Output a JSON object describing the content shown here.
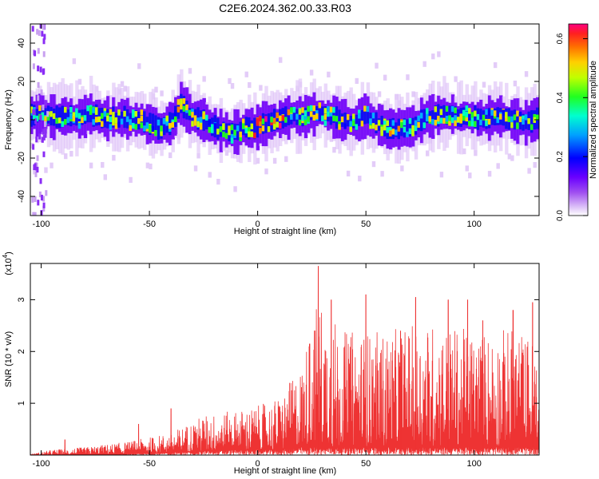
{
  "title": "C2E6.2024.362.00.33.R03",
  "top_panel": {
    "ylabel": "Frequency (Hz)",
    "xlabel": "Height of straight line (km)"
  },
  "colorbar": {
    "label": "Normalized spectral amplitude",
    "ticks": [
      "0.0",
      "0.2",
      "0.4",
      "0.6"
    ]
  },
  "bottom_panel": {
    "ylabel": "SNR (10 * v/v)",
    "multiplier": "(x10",
    "multiplier_exp": "4",
    "xlabel": "Height of straight line (km)"
  },
  "chart_data": [
    {
      "type": "heatmap",
      "title": "C2E6.2024.362.00.33.R03",
      "xlabel": "Height of straight line (km)",
      "ylabel": "Frequency (Hz)",
      "xlim": [
        -105,
        130
      ],
      "ylim": [
        -50,
        50
      ],
      "xticks": [
        -100,
        -50,
        0,
        50,
        100
      ],
      "yticks": [
        -40,
        -20,
        0,
        20,
        40
      ],
      "colorbar_label": "Normalized spectral amplitude",
      "colorbar_range": [
        0.0,
        0.65
      ],
      "colorbar_ticks": [
        0.0,
        0.2,
        0.4,
        0.6
      ],
      "colormap": [
        "#ffffff",
        "#d9b8f5",
        "#9a3ef5",
        "#6a00ff",
        "#0000ff",
        "#00b0ff",
        "#00ffc0",
        "#20ff20",
        "#c8ff00",
        "#ffd000",
        "#ff8000",
        "#ff2020",
        "#ff0090"
      ],
      "band_center_hz": [
        {
          "x": -105,
          "f": 2
        },
        {
          "x": -95,
          "f": 2
        },
        {
          "x": -85,
          "f": 1
        },
        {
          "x": -75,
          "f": 2
        },
        {
          "x": -65,
          "f": 1
        },
        {
          "x": -55,
          "f": 0
        },
        {
          "x": -45,
          "f": -4
        },
        {
          "x": -40,
          "f": -3
        },
        {
          "x": -35,
          "f": 8
        },
        {
          "x": -30,
          "f": 2
        },
        {
          "x": -20,
          "f": -4
        },
        {
          "x": -10,
          "f": -6
        },
        {
          "x": 0,
          "f": -3
        },
        {
          "x": 10,
          "f": 1
        },
        {
          "x": 20,
          "f": 2
        },
        {
          "x": 30,
          "f": 3
        },
        {
          "x": 40,
          "f": -1
        },
        {
          "x": 50,
          "f": 2
        },
        {
          "x": 60,
          "f": -7
        },
        {
          "x": 70,
          "f": -5
        },
        {
          "x": 80,
          "f": 2
        },
        {
          "x": 90,
          "f": 3
        },
        {
          "x": 100,
          "f": 0
        },
        {
          "x": 110,
          "f": 1
        },
        {
          "x": 120,
          "f": 0
        },
        {
          "x": 130,
          "f": 1
        }
      ]
    },
    {
      "type": "line",
      "xlabel": "Height of straight line (km)",
      "ylabel": "SNR (10 * v/v)",
      "xlim": [
        -105,
        130
      ],
      "ylim": [
        0,
        3.7
      ],
      "y_multiplier": "x10^4",
      "xticks": [
        -100,
        -50,
        0,
        50,
        100
      ],
      "yticks": [
        1,
        2,
        3
      ],
      "color": "#ee3333",
      "envelope": [
        {
          "x": -105,
          "min": 0.0,
          "max": 0.02
        },
        {
          "x": -95,
          "min": 0.0,
          "max": 0.12
        },
        {
          "x": -80,
          "min": 0.0,
          "max": 0.18
        },
        {
          "x": -60,
          "min": 0.02,
          "max": 0.3
        },
        {
          "x": -40,
          "min": 0.05,
          "max": 0.5
        },
        {
          "x": -25,
          "min": 0.08,
          "max": 0.9
        },
        {
          "x": -10,
          "min": 0.1,
          "max": 1.0
        },
        {
          "x": 0,
          "min": 0.1,
          "max": 1.1
        },
        {
          "x": 10,
          "min": 0.1,
          "max": 1.3
        },
        {
          "x": 20,
          "min": 0.15,
          "max": 2.0
        },
        {
          "x": 28,
          "min": 0.15,
          "max": 3.6
        },
        {
          "x": 40,
          "min": 0.15,
          "max": 2.8
        },
        {
          "x": 60,
          "min": 0.15,
          "max": 2.8
        },
        {
          "x": 80,
          "min": 0.15,
          "max": 3.0
        },
        {
          "x": 100,
          "min": 0.15,
          "max": 2.8
        },
        {
          "x": 120,
          "min": 0.15,
          "max": 2.9
        },
        {
          "x": 130,
          "min": 0.15,
          "max": 2.5
        }
      ],
      "peaks": [
        {
          "x": -89,
          "y": 0.3
        },
        {
          "x": -55,
          "y": 0.6
        },
        {
          "x": -40,
          "y": 0.9
        },
        {
          "x": 24,
          "y": 2.15
        },
        {
          "x": 28,
          "y": 3.65
        },
        {
          "x": 34,
          "y": 3.0
        },
        {
          "x": 50,
          "y": 3.1
        },
        {
          "x": 66,
          "y": 2.4
        },
        {
          "x": 73,
          "y": 3.05
        },
        {
          "x": 88,
          "y": 3.0
        },
        {
          "x": 97,
          "y": 3.0
        },
        {
          "x": 104,
          "y": 2.6
        },
        {
          "x": 118,
          "y": 2.8
        },
        {
          "x": 127,
          "y": 2.95
        }
      ]
    }
  ]
}
